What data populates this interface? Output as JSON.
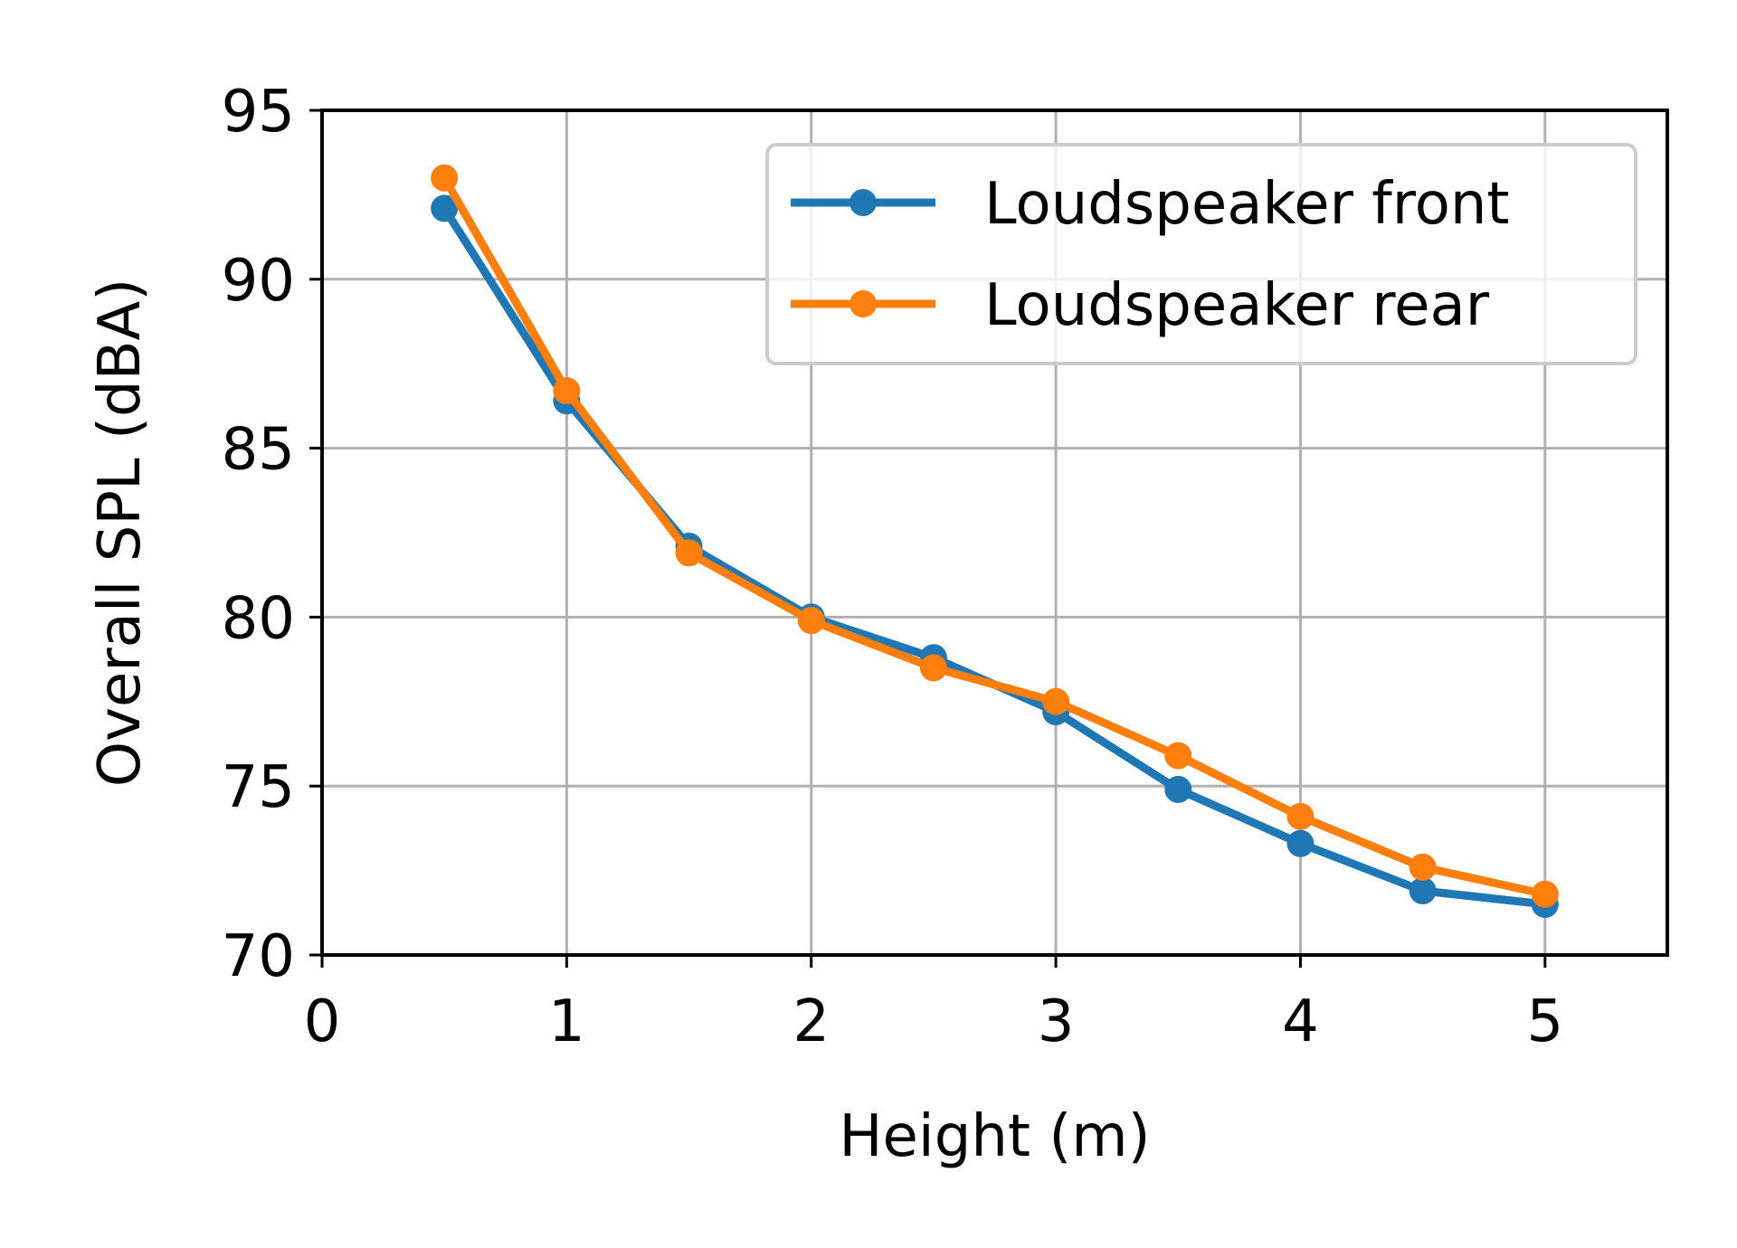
{
  "chart_data": {
    "type": "line",
    "xlabel": "Height (m)",
    "ylabel": "Overall SPL (dBA)",
    "xlim": [
      0,
      5.5
    ],
    "ylim": [
      70,
      95
    ],
    "xticks": [
      "0",
      "1",
      "2",
      "3",
      "4",
      "5"
    ],
    "yticks": [
      "70",
      "75",
      "80",
      "85",
      "90",
      "95"
    ],
    "grid": true,
    "legend_position": "top-right",
    "x": [
      0.5,
      1.0,
      1.5,
      2.0,
      2.5,
      3.0,
      3.5,
      4.0,
      4.5,
      5.0
    ],
    "series": [
      {
        "name": "Loudspeaker front",
        "color": "#1f77b4",
        "values": [
          92.1,
          86.4,
          82.1,
          80.0,
          78.8,
          77.2,
          74.9,
          73.3,
          71.9,
          71.5
        ]
      },
      {
        "name": "Loudspeaker rear",
        "color": "#ff7f0e",
        "values": [
          93.0,
          86.7,
          81.9,
          79.9,
          78.5,
          77.5,
          75.9,
          74.1,
          72.6,
          71.8
        ]
      }
    ]
  }
}
